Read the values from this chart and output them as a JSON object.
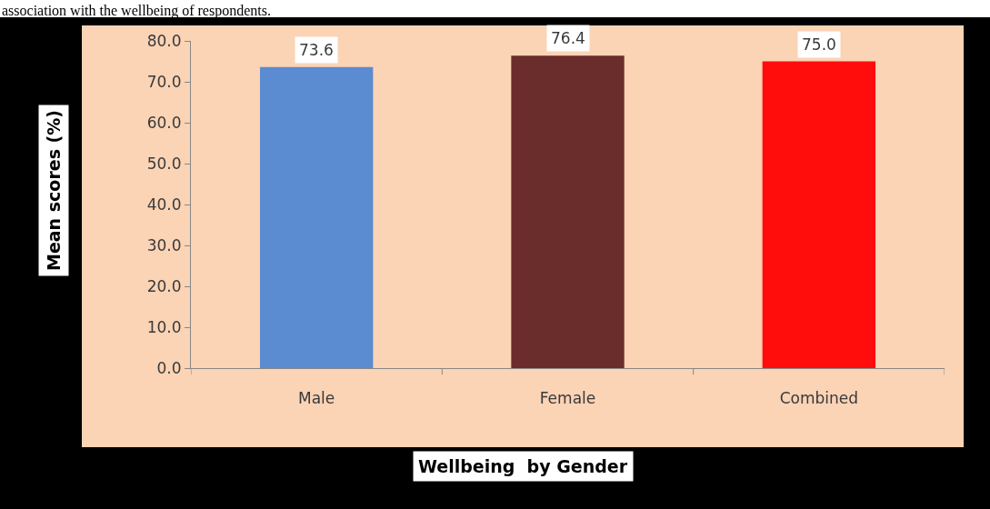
{
  "chart_data": {
    "type": "bar",
    "annotations": [
      "association with the wellbeing of respondents."
    ],
    "xlabel": "Wellbeing  by Gender",
    "ylabel": "Mean scores (%)",
    "categories": [
      "Male",
      "Female",
      "Combined"
    ],
    "values": [
      73.6,
      76.4,
      75.0
    ],
    "colors": [
      "#5b8bd0",
      "#6b2c2c",
      "#ff0d0d"
    ],
    "value_labels": [
      "73.6",
      "76.4",
      "75.0"
    ],
    "ylim": [
      0,
      80
    ],
    "yticks": [
      {
        "value": 0,
        "label": "0.0"
      },
      {
        "value": 10,
        "label": "10.0"
      },
      {
        "value": 20,
        "label": "20.0"
      },
      {
        "value": 30,
        "label": "30.0"
      },
      {
        "value": 40,
        "label": "40.0"
      },
      {
        "value": 50,
        "label": "50.0"
      },
      {
        "value": 60,
        "label": "60.0"
      },
      {
        "value": 70,
        "label": "70.0"
      },
      {
        "value": 80,
        "label": "80.0"
      }
    ],
    "grid": false
  }
}
